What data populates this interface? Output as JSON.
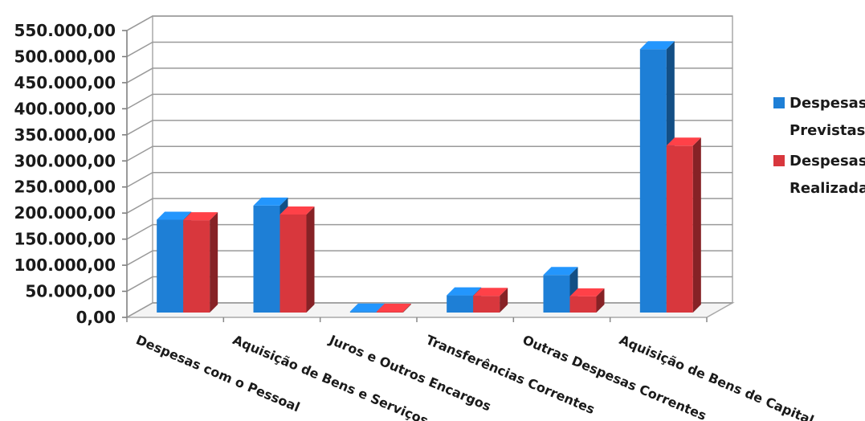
{
  "chart_data": {
    "type": "bar",
    "categories": [
      "Despesas com o Pessoal",
      "Aquisição de Bens e Serviços",
      "Juros e Outros Encargos",
      "Transferências Correntes",
      "Outras Despesas Correntes",
      "Aquisição de Bens de Capital"
    ],
    "series": [
      {
        "name": "Despesas Previstas",
        "name_lines": [
          "Despesas",
          "Previstas"
        ],
        "color": "#1e7fd6",
        "values": [
          178000,
          205000,
          2000,
          33000,
          72000,
          505000
        ]
      },
      {
        "name": "Despesas Realizada",
        "name_lines": [
          "Despesas",
          "Realizada"
        ],
        "color": "#d8373d",
        "values": [
          177000,
          188000,
          1500,
          32000,
          31000,
          320000
        ]
      }
    ],
    "yticks": [
      "0,00",
      "50.000,00",
      "100.000,00",
      "150.000,00",
      "200.000,00",
      "250.000,00",
      "300.000,00",
      "350.000,00",
      "400.000,00",
      "450.000,00",
      "500.000,00",
      "550.000,00"
    ],
    "ylim": [
      0,
      550000
    ],
    "grid": true,
    "legend_position": "right",
    "style": "3d-clustered-column"
  }
}
